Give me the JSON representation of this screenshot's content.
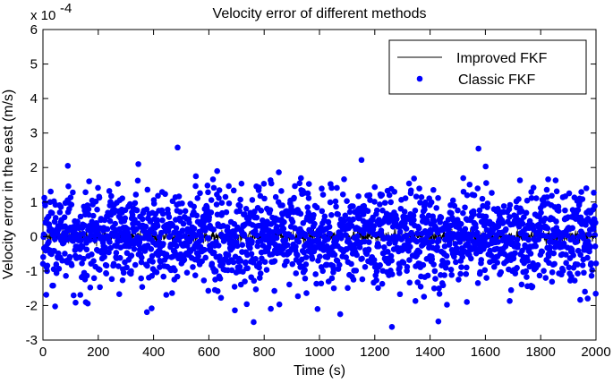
{
  "chart_data": {
    "type": "scatter",
    "title": "Velocity error of different methods",
    "xlabel": "Time (s)",
    "ylabel": "Velocity error in the east (m/s)",
    "y_scale_multiplier": "x 10",
    "y_scale_exponent": "-4",
    "xlim": [
      0,
      2000
    ],
    "ylim": [
      -3,
      6
    ],
    "xticks": [
      0,
      200,
      400,
      600,
      800,
      1000,
      1200,
      1400,
      1600,
      1800,
      2000
    ],
    "yticks": [
      -3,
      -2,
      -1,
      0,
      1,
      2,
      3,
      4,
      5,
      6
    ],
    "xtick_labels": [
      "0",
      "200",
      "400",
      "600",
      "800",
      "1000",
      "1200",
      "1400",
      "1600",
      "1800",
      "2000"
    ],
    "ytick_labels": [
      "-3",
      "-2",
      "-1",
      "0",
      "1",
      "2",
      "3",
      "4",
      "5",
      "6"
    ],
    "grid": false,
    "legend_position": "top-right",
    "legend": [
      "Improved FKF",
      "Classic FKF"
    ],
    "series": [
      {
        "name": "Improved FKF",
        "style": "line",
        "color": "#000000",
        "x_start": 0,
        "x_end": 2000,
        "x_step": 1,
        "approx_amplitude": 0.15
      },
      {
        "name": "Classic FKF",
        "style": "marker",
        "color": "#0000ff",
        "x_start": 0,
        "x_end": 2000,
        "x_step": 1,
        "approx_std": 0.7,
        "notable_points": [
          {
            "x": 487,
            "y": 2.58
          },
          {
            "x": 1575,
            "y": 2.55
          },
          {
            "x": 1152,
            "y": 2.22
          },
          {
            "x": 1262,
            "y": -2.62
          },
          {
            "x": 762,
            "y": -2.48
          },
          {
            "x": 1430,
            "y": -2.46
          },
          {
            "x": 1075,
            "y": -2.25
          },
          {
            "x": 993,
            "y": -2.1
          },
          {
            "x": 90,
            "y": 2.05
          },
          {
            "x": 345,
            "y": 2.1
          },
          {
            "x": 393,
            "y": -2.08
          }
        ]
      }
    ]
  }
}
